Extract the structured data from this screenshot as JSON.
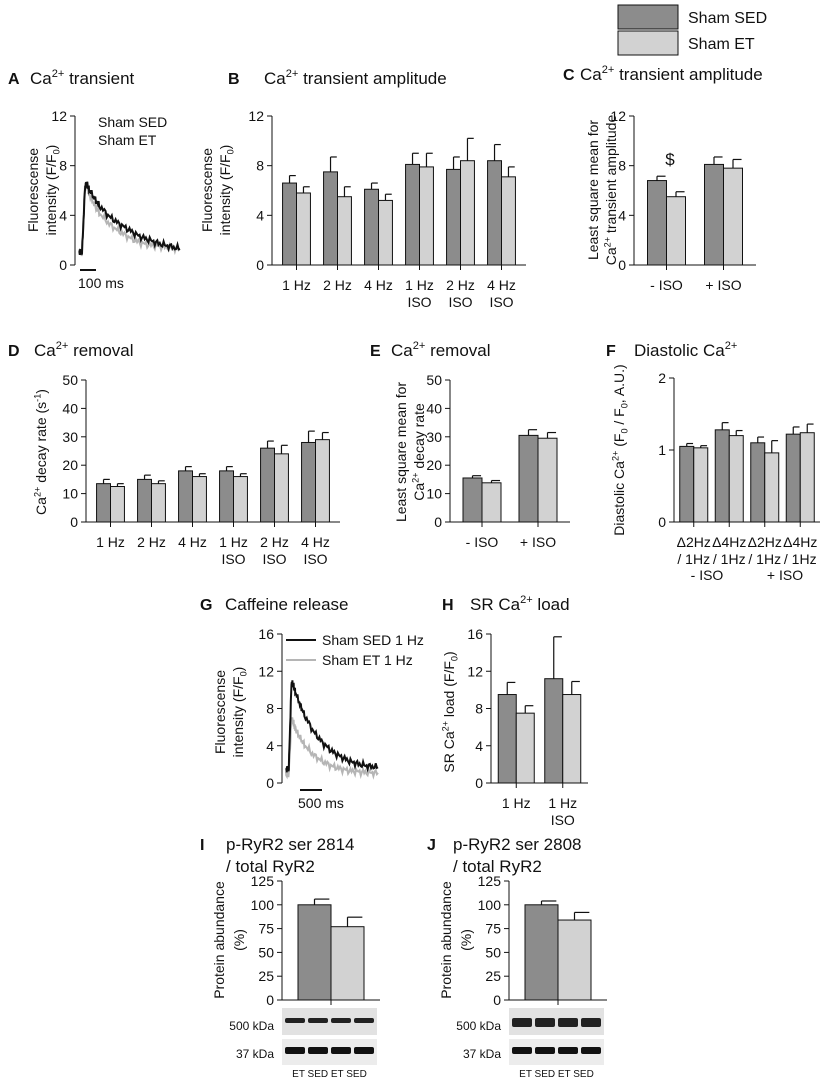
{
  "legend": {
    "items": [
      {
        "name": "Sham SED",
        "color": "#8c8c8c"
      },
      {
        "name": "Sham ET",
        "color": "#d2d2d2"
      }
    ]
  },
  "colors": {
    "sed": "#8c8c8c",
    "et": "#d2d2d2",
    "trace_sed": "#111111",
    "trace_et": "#b5b5b5",
    "axis": "#111111"
  },
  "chart_data": [
    {
      "id": "A",
      "type": "line",
      "panel_label": "A",
      "title": "Ca",
      "ylabel": "Fluorescense intensity (F/F0)",
      "yticks": [
        "0",
        "4",
        "8",
        "12"
      ],
      "ylim": [
        0,
        12
      ],
      "scale_bar": "100 ms",
      "legend": [
        "Sham SED",
        "Sham ET"
      ],
      "series": [
        {
          "name": "Sham SED",
          "x": [
            0,
            3,
            6,
            8,
            10,
            15,
            20,
            30,
            40,
            50,
            60,
            70,
            80,
            90,
            100
          ],
          "y": [
            1.1,
            1.0,
            6.3,
            6.5,
            6.1,
            5.4,
            4.8,
            3.9,
            3.3,
            2.8,
            2.3,
            2.0,
            1.7,
            1.5,
            1.3
          ]
        },
        {
          "name": "Sham ET",
          "x": [
            0,
            3,
            6,
            8,
            10,
            15,
            20,
            30,
            40,
            50,
            60,
            70,
            80,
            90,
            100
          ],
          "y": [
            1.1,
            1.0,
            6.6,
            6.3,
            5.7,
            4.9,
            4.2,
            3.3,
            2.7,
            2.2,
            1.8,
            1.6,
            1.5,
            1.4,
            1.3
          ]
        }
      ]
    },
    {
      "id": "B",
      "type": "bar",
      "panel_label": "B",
      "title": "Ca",
      "ylabel": "Fluorescense intensity (F/F0)",
      "yticks": [
        "0",
        "4",
        "8",
        "12"
      ],
      "ylim": [
        0,
        12
      ],
      "categories": [
        "1 Hz",
        "2 Hz",
        "4 Hz",
        "1 Hz ISO",
        "2 Hz ISO",
        "4 Hz ISO"
      ],
      "series": [
        {
          "name": "Sham SED",
          "values": [
            6.6,
            7.5,
            6.1,
            8.1,
            7.7,
            8.4
          ],
          "errors": [
            0.6,
            1.2,
            0.5,
            0.9,
            1.0,
            1.3
          ]
        },
        {
          "name": "Sham ET",
          "values": [
            5.8,
            5.5,
            5.2,
            7.9,
            8.4,
            7.1
          ],
          "errors": [
            0.5,
            0.8,
            0.5,
            1.1,
            1.8,
            0.8
          ]
        }
      ]
    },
    {
      "id": "C",
      "type": "bar",
      "panel_label": "C",
      "title": "Ca",
      "ylabel": "Least square mean for Ca2+ transient amplitude",
      "yticks": [
        "0",
        "4",
        "8",
        "12"
      ],
      "ylim": [
        0,
        12
      ],
      "categories": [
        "- ISO",
        "+ ISO"
      ],
      "annotations": [
        {
          "text": "$",
          "category": "- ISO"
        }
      ],
      "series": [
        {
          "name": "Sham SED",
          "values": [
            6.8,
            8.1
          ],
          "errors": [
            0.35,
            0.6
          ]
        },
        {
          "name": "Sham ET",
          "values": [
            5.5,
            7.8
          ],
          "errors": [
            0.4,
            0.7
          ]
        }
      ]
    },
    {
      "id": "D",
      "type": "bar",
      "panel_label": "D",
      "title": "Ca",
      "ylabel": "Ca2+ decay rate (s-1)",
      "yticks": [
        "0",
        "10",
        "20",
        "30",
        "40",
        "50"
      ],
      "ylim": [
        0,
        50
      ],
      "categories": [
        "1 Hz",
        "2 Hz",
        "4 Hz",
        "1 Hz ISO",
        "2 Hz ISO",
        "4 Hz ISO"
      ],
      "series": [
        {
          "name": "Sham SED",
          "values": [
            13.5,
            15,
            18,
            18,
            26,
            28
          ],
          "errors": [
            1.5,
            1.5,
            1.5,
            1.5,
            2.5,
            4
          ]
        },
        {
          "name": "Sham ET",
          "values": [
            12.5,
            13.5,
            16,
            16,
            24,
            29
          ],
          "errors": [
            1,
            1,
            1,
            1,
            3,
            2.5
          ]
        }
      ]
    },
    {
      "id": "E",
      "type": "bar",
      "panel_label": "E",
      "title": "Ca",
      "ylabel": "Least square mean for Ca2+ decay rate",
      "yticks": [
        "0",
        "10",
        "20",
        "30",
        "40",
        "50"
      ],
      "ylim": [
        0,
        50
      ],
      "categories": [
        "- ISO",
        "+ ISO"
      ],
      "series": [
        {
          "name": "Sham SED",
          "values": [
            15.5,
            30.5
          ],
          "errors": [
            0.8,
            2
          ]
        },
        {
          "name": "Sham ET",
          "values": [
            13.8,
            29.5
          ],
          "errors": [
            0.8,
            2
          ]
        }
      ]
    },
    {
      "id": "F",
      "type": "bar",
      "panel_label": "F",
      "title": "Diastolic Ca",
      "ylabel": "Diastolic Ca2+ (F0 / F0, A.U.)",
      "yticks": [
        "0",
        "1",
        "2"
      ],
      "ylim": [
        0,
        2
      ],
      "categories": [
        "Δ2Hz / 1Hz",
        "Δ4Hz / 1Hz",
        "Δ2Hz / 1Hz",
        "Δ4Hz / 1Hz"
      ],
      "group_labels": [
        "- ISO",
        "+ ISO"
      ],
      "series": [
        {
          "name": "Sham SED",
          "values": [
            1.05,
            1.28,
            1.1,
            1.22
          ],
          "errors": [
            0.04,
            0.1,
            0.08,
            0.1
          ]
        },
        {
          "name": "Sham ET",
          "values": [
            1.03,
            1.2,
            0.96,
            1.24
          ],
          "errors": [
            0.03,
            0.07,
            0.17,
            0.12
          ]
        }
      ]
    },
    {
      "id": "G",
      "type": "line",
      "panel_label": "G",
      "title": "Caffeine release",
      "ylabel": "Fluorescense intensity (F/F0)",
      "yticks": [
        "0",
        "4",
        "8",
        "12",
        "16"
      ],
      "ylim": [
        0,
        16
      ],
      "scale_bar": "500 ms",
      "legend": [
        "Sham SED 1 Hz",
        "Sham ET 1 Hz"
      ],
      "series": [
        {
          "name": "Sham SED 1 Hz",
          "x": [
            0,
            3,
            6,
            8,
            10,
            15,
            20,
            30,
            40,
            50,
            60,
            70,
            80,
            90,
            100
          ],
          "y": [
            1.5,
            1.5,
            10.8,
            10.5,
            9.8,
            8.5,
            7.3,
            5.5,
            4.3,
            3.4,
            2.8,
            2.3,
            2.0,
            1.8,
            1.7
          ]
        },
        {
          "name": "Sham ET 1 Hz",
          "x": [
            0,
            3,
            6,
            8,
            10,
            15,
            20,
            30,
            40,
            50,
            60,
            70,
            80,
            90,
            100
          ],
          "y": [
            1.0,
            1.0,
            7.0,
            6.5,
            5.8,
            4.9,
            4.1,
            3.0,
            2.3,
            1.8,
            1.5,
            1.3,
            1.2,
            1.1,
            1.1
          ]
        }
      ]
    },
    {
      "id": "H",
      "type": "bar",
      "panel_label": "H",
      "title": "SR Ca",
      "ylabel": "SR Ca2+ load (F/F0)",
      "yticks": [
        "0",
        "4",
        "8",
        "12",
        "16"
      ],
      "ylim": [
        0,
        16
      ],
      "categories": [
        "1 Hz",
        "1 Hz ISO"
      ],
      "series": [
        {
          "name": "Sham SED",
          "values": [
            9.5,
            11.2
          ],
          "errors": [
            1.3,
            4.5
          ]
        },
        {
          "name": "Sham ET",
          "values": [
            7.5,
            9.5
          ],
          "errors": [
            0.8,
            1.4
          ]
        }
      ]
    },
    {
      "id": "I",
      "type": "bar",
      "panel_label": "I",
      "title": "p-RyR2 ser 2814 / total RyR2",
      "ylabel": "Protein abundance (%)",
      "yticks": [
        "0",
        "25",
        "50",
        "75",
        "100",
        "125"
      ],
      "ylim": [
        0,
        125
      ],
      "categories": [
        ""
      ],
      "blot_labels": [
        "500 kDa",
        "37 kDa"
      ],
      "lane_labels": "ET SED ET SED",
      "series": [
        {
          "name": "Sham SED",
          "values": [
            100
          ],
          "errors": [
            6
          ]
        },
        {
          "name": "Sham ET",
          "values": [
            77
          ],
          "errors": [
            10
          ]
        }
      ]
    },
    {
      "id": "J",
      "type": "bar",
      "panel_label": "J",
      "title": "p-RyR2 ser 2808 / total RyR2",
      "ylabel": "Protein abundance (%)",
      "yticks": [
        "0",
        "25",
        "50",
        "75",
        "100",
        "125"
      ],
      "ylim": [
        0,
        125
      ],
      "categories": [
        ""
      ],
      "blot_labels": [
        "500 kDa",
        "37 kDa"
      ],
      "lane_labels": "ET SED ET SED",
      "series": [
        {
          "name": "Sham SED",
          "values": [
            100
          ],
          "errors": [
            4
          ]
        },
        {
          "name": "Sham ET",
          "values": [
            84
          ],
          "errors": [
            8
          ]
        }
      ]
    }
  ]
}
